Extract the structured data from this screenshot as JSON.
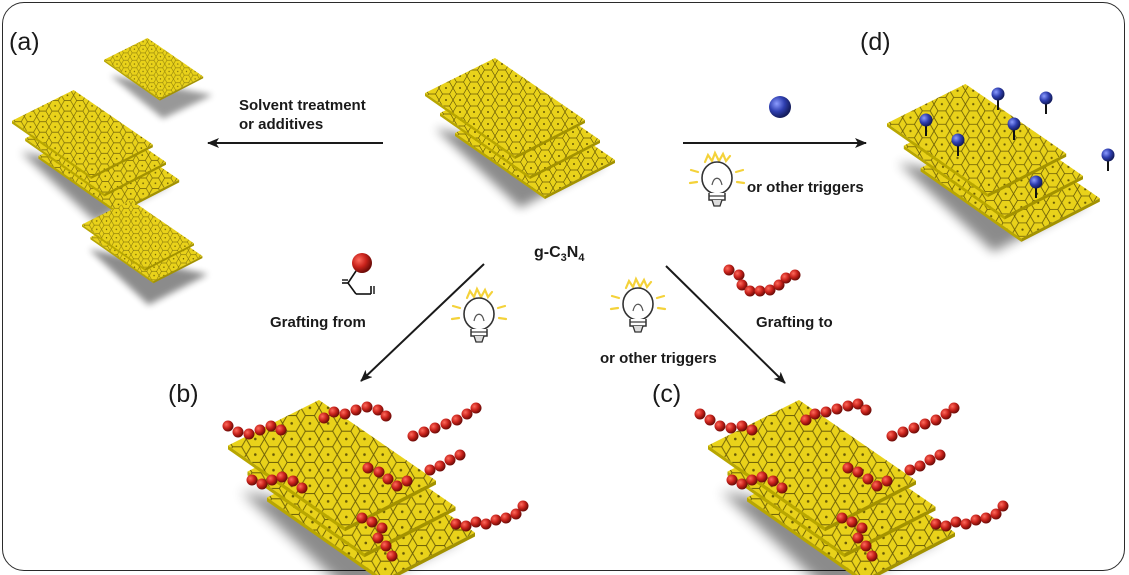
{
  "panels": {
    "a": "(a)",
    "b": "(b)",
    "c": "(c)",
    "d": "(d)"
  },
  "labels": {
    "solvent_line1": "Solvent treatment",
    "solvent_line2": "or additives",
    "other_triggers_d": "or other triggers",
    "grafting_from": "Grafting from",
    "grafting_to": "Grafting to",
    "other_triggers_c": "or other triggers"
  },
  "formula": {
    "prefix": "g-C",
    "sub1": "3",
    "mid": "N",
    "sub2": "4"
  },
  "icons": {
    "sheet": "g-c3n4-sheet-icon",
    "bulb": "light-bulb-icon",
    "nanoparticle": "nanoparticle-icon",
    "monomer": "monomer-icon",
    "polymer": "polymer-chain-icon"
  },
  "colors": {
    "sheet_fill": "#f3e01c",
    "sheet_edge": "#b8a600",
    "polymer": "#c8221b",
    "particle": "#2f3fb0",
    "bulb_glow": "#f4d23a",
    "arrow": "#1a1a1a"
  }
}
